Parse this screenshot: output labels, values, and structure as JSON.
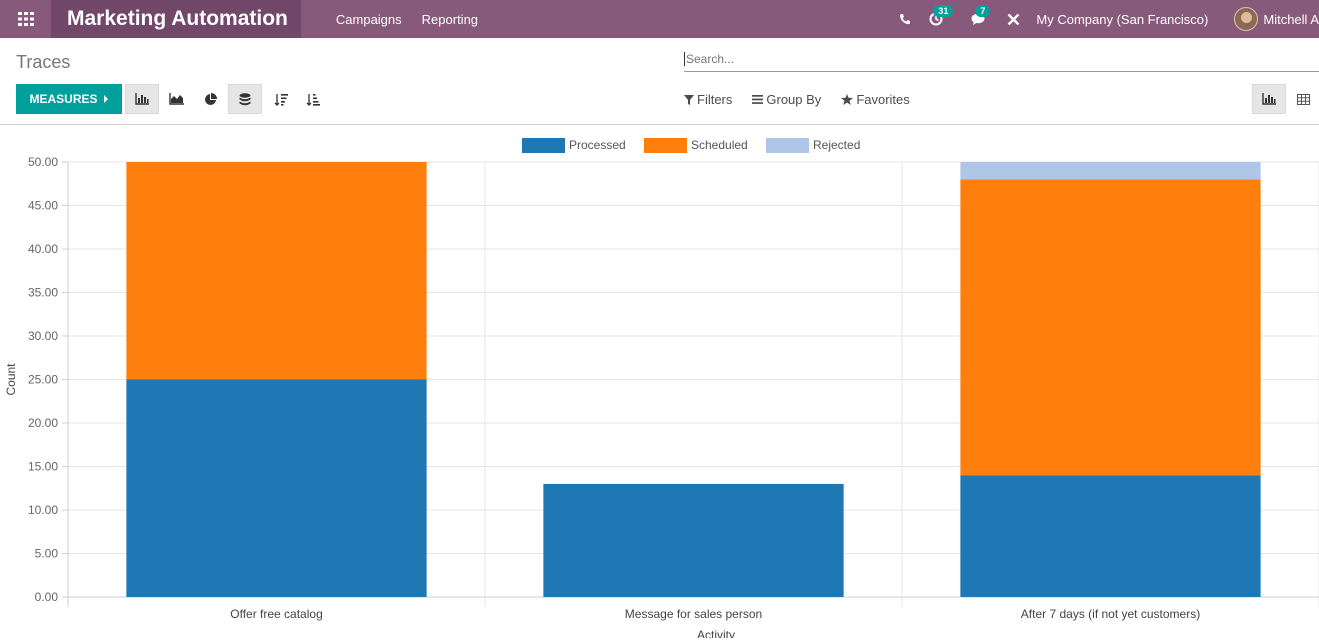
{
  "navbar": {
    "app_title": "Marketing Automation",
    "menu": [
      "Campaigns",
      "Reporting"
    ],
    "activity_badge": "31",
    "messages_badge": "7",
    "company": "My Company (San Francisco)",
    "user": "Mitchell A",
    "bg_color": "#875a7b"
  },
  "control_panel": {
    "breadcrumb": "Traces",
    "search_placeholder": "Search...",
    "measures_label": "MEASURES",
    "filters_label": "Filters",
    "group_by_label": "Group By",
    "favorites_label": "Favorites",
    "icons": [
      "bar-chart-icon",
      "line-chart-icon",
      "pie-chart-icon",
      "stacked-icon",
      "sort-descending-icon",
      "sort-ascending-icon",
      "graph-view-icon",
      "pivot-view-icon"
    ]
  },
  "chart_data": {
    "type": "bar",
    "stacked": true,
    "categories": [
      "Offer free catalog",
      "Message for sales person",
      "After 7 days (if not yet customers)"
    ],
    "series": [
      {
        "name": "Processed",
        "color": "#1f77b4",
        "values": [
          25,
          13,
          14
        ]
      },
      {
        "name": "Scheduled",
        "color": "#ff7f0e",
        "values": [
          25,
          0,
          34
        ]
      },
      {
        "name": "Rejected",
        "color": "#aec7e8",
        "values": [
          0,
          0,
          2
        ]
      }
    ],
    "ylabel": "Count",
    "xlabel": "Activity",
    "ylim": [
      0,
      50
    ],
    "yticks": [
      "0.00",
      "5.00",
      "10.00",
      "15.00",
      "20.00",
      "25.00",
      "30.00",
      "35.00",
      "40.00",
      "45.00",
      "50.00"
    ],
    "legend": "top-center",
    "grid": true
  }
}
